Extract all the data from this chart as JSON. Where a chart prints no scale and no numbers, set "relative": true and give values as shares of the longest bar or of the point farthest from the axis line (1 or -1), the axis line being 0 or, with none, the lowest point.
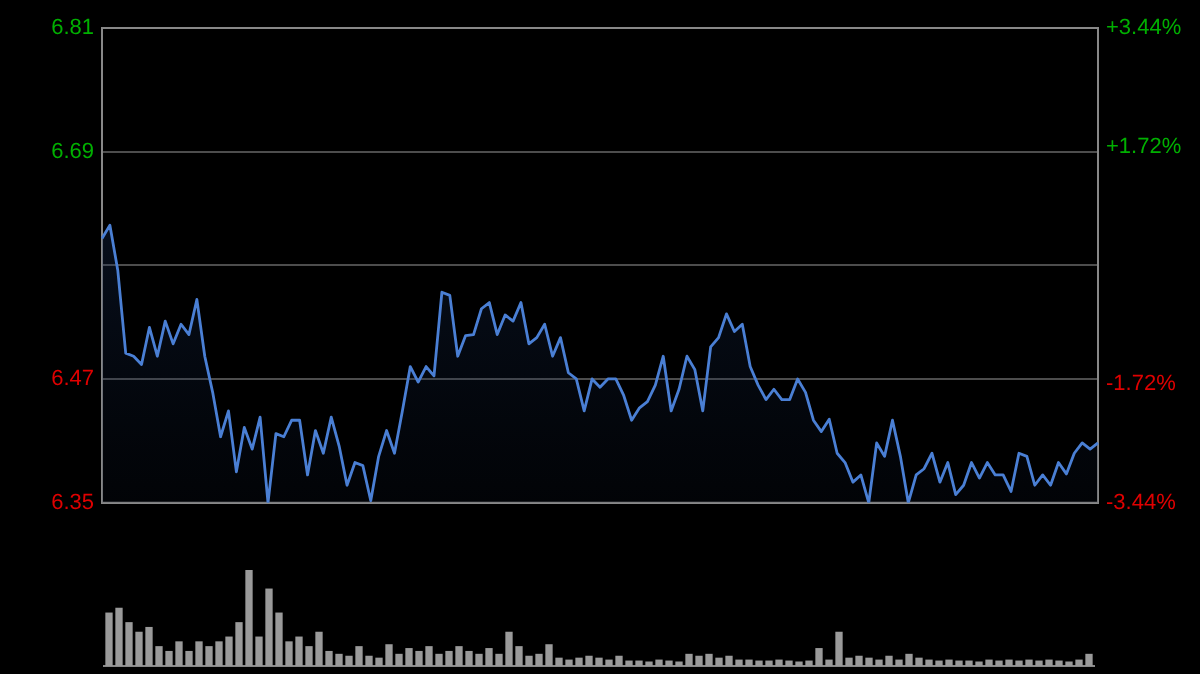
{
  "chart_data": [
    {
      "type": "area",
      "categories": [
        null,
        null,
        null,
        null,
        null,
        null,
        null,
        null,
        null,
        null,
        null,
        null,
        null,
        null,
        null,
        null,
        null,
        null,
        null,
        null,
        null,
        null,
        null,
        null,
        null,
        null,
        null,
        null,
        null,
        null,
        null,
        null,
        null,
        null,
        null,
        null,
        null,
        null,
        null,
        null,
        null,
        null,
        null,
        null,
        null,
        null,
        null,
        null,
        null,
        null,
        null,
        null,
        null,
        null,
        null,
        null,
        null,
        null,
        null,
        null,
        null,
        null,
        null,
        null,
        null,
        null,
        null,
        null,
        null,
        null,
        null,
        null,
        null,
        null,
        null,
        null,
        null,
        null,
        null,
        null,
        null,
        null,
        null,
        null,
        null,
        null,
        null,
        null,
        null,
        null,
        null,
        null,
        null,
        null,
        null,
        null,
        null,
        null,
        null,
        null,
        null,
        null,
        null,
        null,
        null,
        null,
        null,
        null,
        null,
        null,
        null,
        null,
        null,
        null,
        null,
        null,
        null,
        null,
        null,
        null,
        null,
        null,
        null,
        null,
        null,
        null,
        null
      ],
      "ylim": [
        6.35,
        6.81
      ],
      "yticks": [
        6.35,
        6.47,
        {
          "value": 6.58,
          "label": null
        },
        6.69,
        6.81
      ],
      "y2lim": [
        -3.44,
        3.44
      ],
      "y2ticks": [
        {
          "value": -3.44,
          "label": "-3.44%"
        },
        {
          "value": -1.72,
          "label": "-1.72%"
        },
        {
          "value": 0,
          "label": null
        },
        {
          "value": 1.72,
          "label": "+1.72%"
        },
        {
          "value": 3.44,
          "label": "+3.44%"
        }
      ],
      "grid": "y",
      "legend": false,
      "marker": "none",
      "line_style": "solid",
      "series": [
        {
          "color": "#4a7fd4",
          "values": [
            6.606,
            6.619,
            6.575,
            6.495,
            6.492,
            6.484,
            6.52,
            6.492,
            6.526,
            6.504,
            6.523,
            6.513,
            6.547,
            6.492,
            6.457,
            6.414,
            6.439,
            6.38,
            6.423,
            6.402,
            6.433,
            6.35,
            6.417,
            6.414,
            6.43,
            6.43,
            6.377,
            6.42,
            6.398,
            6.433,
            6.405,
            6.367,
            6.389,
            6.386,
            6.352,
            6.395,
            6.42,
            6.398,
            6.439,
            6.482,
            6.467,
            6.482,
            6.473,
            6.554,
            6.551,
            6.492,
            6.512,
            6.513,
            6.538,
            6.544,
            6.513,
            6.532,
            6.526,
            6.544,
            6.504,
            6.51,
            6.523,
            6.492,
            6.51,
            6.476,
            6.47,
            6.439,
            6.47,
            6.462,
            6.47,
            6.47,
            6.454,
            6.43,
            6.442,
            6.448,
            6.464,
            6.492,
            6.439,
            6.46,
            6.492,
            6.479,
            6.439,
            6.501,
            6.51,
            6.533,
            6.516,
            6.523,
            6.482,
            6.464,
            6.45,
            6.46,
            6.45,
            6.45,
            6.47,
            6.457,
            6.43,
            6.419,
            6.431,
            6.398,
            6.389,
            6.37,
            6.377,
            6.35,
            6.408,
            6.395,
            6.43,
            6.395,
            6.35,
            6.377,
            6.383,
            6.398,
            6.37,
            6.389,
            6.358,
            6.367,
            6.389,
            6.374,
            6.389,
            6.377,
            6.377,
            6.361,
            6.398,
            6.395,
            6.367,
            6.377,
            6.367,
            6.389,
            6.378,
            6.398,
            6.408,
            6.402,
            6.408
          ]
        }
      ]
    },
    {
      "type": "bar",
      "relative": true,
      "legend": false,
      "grid": false,
      "categories": [
        null,
        null,
        null,
        null,
        null,
        null,
        null,
        null,
        null,
        null,
        null,
        null,
        null,
        null,
        null,
        null,
        null,
        null,
        null,
        null,
        null,
        null,
        null,
        null,
        null,
        null,
        null,
        null,
        null,
        null,
        null,
        null,
        null,
        null,
        null,
        null,
        null,
        null,
        null,
        null,
        null,
        null,
        null,
        null,
        null,
        null,
        null,
        null,
        null,
        null,
        null,
        null,
        null,
        null,
        null,
        null,
        null,
        null,
        null,
        null,
        null,
        null,
        null,
        null,
        null,
        null,
        null,
        null,
        null,
        null,
        null,
        null,
        null,
        null,
        null,
        null,
        null,
        null,
        null,
        null,
        null,
        null,
        null,
        null,
        null,
        null,
        null,
        null,
        null,
        null,
        null,
        null,
        null,
        null,
        null,
        null,
        null,
        null,
        null
      ],
      "series": [
        {
          "color": "#9a9a9a",
          "values": [
            0.55,
            0.6,
            0.45,
            0.35,
            0.4,
            0.2,
            0.15,
            0.25,
            0.15,
            0.25,
            0.2,
            0.25,
            0.3,
            0.45,
            1.0,
            0.3,
            0.8,
            0.55,
            0.25,
            0.3,
            0.2,
            0.35,
            0.15,
            0.12,
            0.1,
            0.2,
            0.1,
            0.08,
            0.22,
            0.12,
            0.18,
            0.15,
            0.2,
            0.12,
            0.15,
            0.2,
            0.15,
            0.12,
            0.18,
            0.12,
            0.35,
            0.2,
            0.1,
            0.12,
            0.22,
            0.08,
            0.06,
            0.08,
            0.1,
            0.08,
            0.06,
            0.1,
            0.05,
            0.05,
            0.04,
            0.06,
            0.05,
            0.04,
            0.12,
            0.1,
            0.12,
            0.08,
            0.1,
            0.06,
            0.06,
            0.05,
            0.05,
            0.06,
            0.05,
            0.04,
            0.05,
            0.18,
            0.06,
            0.35,
            0.08,
            0.1,
            0.08,
            0.06,
            0.1,
            0.06,
            0.12,
            0.08,
            0.06,
            0.05,
            0.06,
            0.05,
            0.05,
            0.04,
            0.06,
            0.05,
            0.06,
            0.05,
            0.06,
            0.05,
            0.06,
            0.05,
            0.04,
            0.06,
            0.12
          ]
        }
      ]
    }
  ]
}
